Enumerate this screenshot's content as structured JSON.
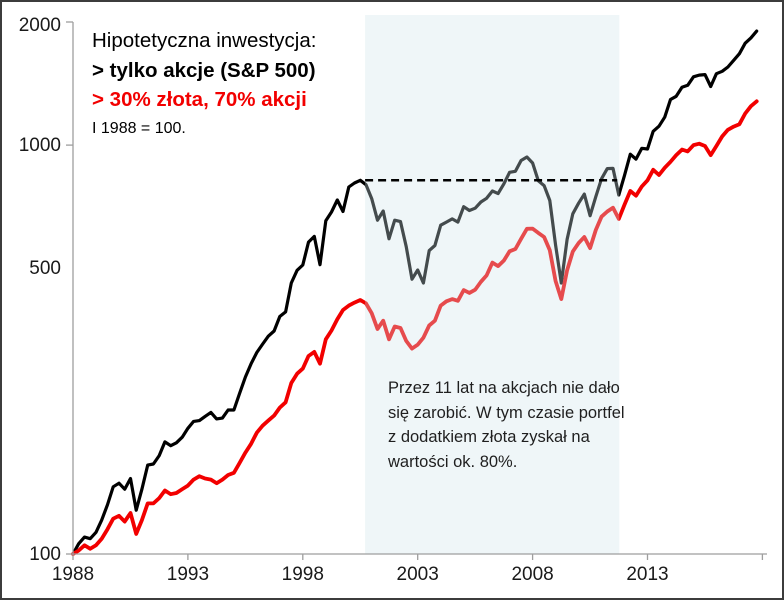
{
  "frame": {
    "border_color": "#3c3c3c",
    "background": "#ffffff"
  },
  "legend": {
    "title": "Hipotetyczna inwestycja:",
    "item_stocks": "> tylko akcje (S&P 500)",
    "item_mix": "> 30% złota, 70% akcji",
    "note": "I 1988 = 100.",
    "item_stocks_color": "#000000",
    "item_mix_color": "#f20000"
  },
  "annotation": {
    "text": "Przez 11 lat na akcjach nie dało się zarobić. W tym czasie portfel z dodatkiem złota zyskał na wartości ok. 80%."
  },
  "chart_data": {
    "type": "line",
    "title": "Hipotetyczna inwestycja:",
    "xlabel": "",
    "ylabel": "",
    "log_scale_y": true,
    "ylim": [
      100,
      2000
    ],
    "xlim": [
      1988,
      2018.2
    ],
    "grid": false,
    "axis_color": "#9e9e9e",
    "tick_label_color": "#1a1a1a",
    "tick_label_font_px": 19,
    "y_ticks": [
      {
        "label": "2000",
        "value": 2000,
        "has_tick": true
      },
      {
        "label": "1000",
        "value": 1000,
        "has_tick": true
      },
      {
        "label": "500",
        "value": 500,
        "has_tick": false
      },
      {
        "label": "100",
        "value": 100,
        "has_tick": true
      }
    ],
    "x_ticks": [
      {
        "label": "1988",
        "value": 1988
      },
      {
        "label": "1993",
        "value": 1993
      },
      {
        "label": "1998",
        "value": 1998
      },
      {
        "label": "2003",
        "value": 2003
      },
      {
        "label": "2008",
        "value": 2008
      },
      {
        "label": "2013",
        "value": 2013
      },
      {
        "label": "",
        "value": 2018
      }
    ],
    "shaded_region": {
      "x_start": 2000.71,
      "x_end": 2011.77,
      "color": "#cfe3ea",
      "opacity": 0.33,
      "meaning": "Okres 11 lat bez zysku na akcjach (2000-2011)"
    },
    "dashed_line": {
      "level": 820,
      "x_start": 2000.71,
      "x_end": 2011.68,
      "color": "#000000"
    },
    "series": [
      {
        "name": "tylko akcje (S&P 500)",
        "color": "#000000",
        "width": 3.2,
        "points": [
          [
            1988.0,
            100
          ],
          [
            1988.25,
            106
          ],
          [
            1988.5,
            110
          ],
          [
            1988.75,
            109
          ],
          [
            1989.0,
            113
          ],
          [
            1989.25,
            121
          ],
          [
            1989.5,
            132
          ],
          [
            1989.75,
            146
          ],
          [
            1990.0,
            149
          ],
          [
            1990.25,
            144
          ],
          [
            1990.5,
            153
          ],
          [
            1990.75,
            128
          ],
          [
            1991.0,
            144
          ],
          [
            1991.25,
            165
          ],
          [
            1991.5,
            166
          ],
          [
            1991.75,
            174
          ],
          [
            1992.0,
            188
          ],
          [
            1992.25,
            184
          ],
          [
            1992.5,
            187
          ],
          [
            1992.75,
            193
          ],
          [
            1993.0,
            203
          ],
          [
            1993.25,
            211
          ],
          [
            1993.5,
            212
          ],
          [
            1993.75,
            217
          ],
          [
            1994.0,
            222
          ],
          [
            1994.25,
            214
          ],
          [
            1994.5,
            215
          ],
          [
            1994.75,
            225
          ],
          [
            1995.0,
            225
          ],
          [
            1995.25,
            247
          ],
          [
            1995.5,
            271
          ],
          [
            1995.75,
            292
          ],
          [
            1996.0,
            311
          ],
          [
            1996.25,
            326
          ],
          [
            1996.5,
            341
          ],
          [
            1996.75,
            351
          ],
          [
            1997.0,
            381
          ],
          [
            1997.25,
            391
          ],
          [
            1997.5,
            460
          ],
          [
            1997.75,
            494
          ],
          [
            1998.0,
            509
          ],
          [
            1998.25,
            579
          ],
          [
            1998.5,
            598
          ],
          [
            1998.75,
            510
          ],
          [
            1999.0,
            653
          ],
          [
            1999.25,
            686
          ],
          [
            1999.5,
            734
          ],
          [
            1999.75,
            688
          ],
          [
            2000.0,
            790
          ],
          [
            2000.25,
            808
          ],
          [
            2000.5,
            820
          ],
          [
            2000.75,
            800
          ],
          [
            2001.0,
            740
          ],
          [
            2001.25,
            655
          ],
          [
            2001.5,
            690
          ],
          [
            2001.75,
            590
          ],
          [
            2002.0,
            655
          ],
          [
            2002.25,
            650
          ],
          [
            2002.5,
            565
          ],
          [
            2002.75,
            470
          ],
          [
            2003.0,
            495
          ],
          [
            2003.25,
            460
          ],
          [
            2003.5,
            552
          ],
          [
            2003.75,
            568
          ],
          [
            2004.0,
            637
          ],
          [
            2004.25,
            648
          ],
          [
            2004.5,
            660
          ],
          [
            2004.75,
            648
          ],
          [
            2005.0,
            707
          ],
          [
            2005.25,
            692
          ],
          [
            2005.5,
            701
          ],
          [
            2005.75,
            726
          ],
          [
            2006.0,
            741
          ],
          [
            2006.25,
            772
          ],
          [
            2006.5,
            761
          ],
          [
            2006.75,
            804
          ],
          [
            2007.0,
            858
          ],
          [
            2007.25,
            863
          ],
          [
            2007.5,
            917
          ],
          [
            2007.75,
            935
          ],
          [
            2008.0,
            904
          ],
          [
            2008.25,
            818
          ],
          [
            2008.5,
            796
          ],
          [
            2008.75,
            732
          ],
          [
            2009.0,
            569
          ],
          [
            2009.25,
            460
          ],
          [
            2009.5,
            588
          ],
          [
            2009.75,
            679
          ],
          [
            2010.0,
            721
          ],
          [
            2010.25,
            759
          ],
          [
            2010.5,
            672
          ],
          [
            2010.75,
            748
          ],
          [
            2011.0,
            827
          ],
          [
            2011.25,
            876
          ],
          [
            2011.5,
            877
          ],
          [
            2011.75,
            755
          ],
          [
            2012.0,
            843
          ],
          [
            2012.25,
            950
          ],
          [
            2012.5,
            924
          ],
          [
            2012.75,
            982
          ],
          [
            2013.0,
            978
          ],
          [
            2013.25,
            1081
          ],
          [
            2013.5,
            1112
          ],
          [
            2013.75,
            1170
          ],
          [
            2014.0,
            1293
          ],
          [
            2014.25,
            1316
          ],
          [
            2014.5,
            1385
          ],
          [
            2014.75,
            1400
          ],
          [
            2015.0,
            1469
          ],
          [
            2015.25,
            1483
          ],
          [
            2015.5,
            1487
          ],
          [
            2015.75,
            1391
          ],
          [
            2016.0,
            1495
          ],
          [
            2016.25,
            1515
          ],
          [
            2016.5,
            1552
          ],
          [
            2016.75,
            1612
          ],
          [
            2017.0,
            1673
          ],
          [
            2017.25,
            1775
          ],
          [
            2017.5,
            1829
          ],
          [
            2017.75,
            1900
          ]
        ]
      },
      {
        "name": "30% złota, 70% akcji",
        "color": "#f20000",
        "width": 3.8,
        "points": [
          [
            1988.0,
            100
          ],
          [
            1988.25,
            102
          ],
          [
            1988.5,
            105
          ],
          [
            1988.75,
            103
          ],
          [
            1989.0,
            105
          ],
          [
            1989.25,
            109
          ],
          [
            1989.5,
            115
          ],
          [
            1989.75,
            122
          ],
          [
            1990.0,
            124
          ],
          [
            1990.25,
            120
          ],
          [
            1990.5,
            126
          ],
          [
            1990.75,
            112
          ],
          [
            1991.0,
            121
          ],
          [
            1991.25,
            133
          ],
          [
            1991.5,
            133
          ],
          [
            1991.75,
            137
          ],
          [
            1992.0,
            143
          ],
          [
            1992.25,
            140
          ],
          [
            1992.5,
            141
          ],
          [
            1992.75,
            144
          ],
          [
            1993.0,
            147
          ],
          [
            1993.25,
            152
          ],
          [
            1993.5,
            155
          ],
          [
            1993.75,
            153
          ],
          [
            1994.0,
            152
          ],
          [
            1994.25,
            149
          ],
          [
            1994.5,
            152
          ],
          [
            1994.75,
            156
          ],
          [
            1995.0,
            158
          ],
          [
            1995.25,
            167
          ],
          [
            1995.5,
            177
          ],
          [
            1995.75,
            186
          ],
          [
            1996.0,
            198
          ],
          [
            1996.25,
            206
          ],
          [
            1996.5,
            212
          ],
          [
            1996.75,
            218
          ],
          [
            1997.0,
            228
          ],
          [
            1997.25,
            235
          ],
          [
            1997.5,
            262
          ],
          [
            1997.75,
            276
          ],
          [
            1998.0,
            284
          ],
          [
            1998.25,
            305
          ],
          [
            1998.5,
            312
          ],
          [
            1998.75,
            292
          ],
          [
            1999.0,
            335
          ],
          [
            1999.25,
            352
          ],
          [
            1999.5,
            375
          ],
          [
            1999.75,
            395
          ],
          [
            2000.0,
            405
          ],
          [
            2000.25,
            412
          ],
          [
            2000.5,
            418
          ],
          [
            2000.75,
            410
          ],
          [
            2001.0,
            388
          ],
          [
            2001.25,
            355
          ],
          [
            2001.5,
            372
          ],
          [
            2001.75,
            335
          ],
          [
            2002.0,
            360
          ],
          [
            2002.25,
            357
          ],
          [
            2002.5,
            332
          ],
          [
            2002.75,
            318
          ],
          [
            2003.0,
            325
          ],
          [
            2003.25,
            338
          ],
          [
            2003.5,
            362
          ],
          [
            2003.75,
            372
          ],
          [
            2004.0,
            405
          ],
          [
            2004.25,
            415
          ],
          [
            2004.5,
            420
          ],
          [
            2004.75,
            416
          ],
          [
            2005.0,
            442
          ],
          [
            2005.25,
            435
          ],
          [
            2005.5,
            443
          ],
          [
            2005.75,
            463
          ],
          [
            2006.0,
            480
          ],
          [
            2006.25,
            516
          ],
          [
            2006.5,
            506
          ],
          [
            2006.75,
            522
          ],
          [
            2007.0,
            550
          ],
          [
            2007.25,
            557
          ],
          [
            2007.5,
            590
          ],
          [
            2007.75,
            624
          ],
          [
            2008.0,
            625
          ],
          [
            2008.25,
            610
          ],
          [
            2008.5,
            596
          ],
          [
            2008.75,
            553
          ],
          [
            2009.0,
            465
          ],
          [
            2009.25,
            420
          ],
          [
            2009.5,
            494
          ],
          [
            2009.75,
            549
          ],
          [
            2010.0,
            576
          ],
          [
            2010.25,
            596
          ],
          [
            2010.5,
            560
          ],
          [
            2010.75,
            620
          ],
          [
            2011.0,
            668
          ],
          [
            2011.25,
            688
          ],
          [
            2011.5,
            703
          ],
          [
            2011.75,
            660
          ],
          [
            2012.0,
            715
          ],
          [
            2012.25,
            772
          ],
          [
            2012.5,
            752
          ],
          [
            2012.75,
            792
          ],
          [
            2013.0,
            820
          ],
          [
            2013.25,
            870
          ],
          [
            2013.5,
            845
          ],
          [
            2013.75,
            880
          ],
          [
            2014.0,
            910
          ],
          [
            2014.25,
            945
          ],
          [
            2014.5,
            975
          ],
          [
            2014.75,
            965
          ],
          [
            2015.0,
            1000
          ],
          [
            2015.25,
            1008
          ],
          [
            2015.5,
            995
          ],
          [
            2015.75,
            945
          ],
          [
            2016.0,
            995
          ],
          [
            2016.25,
            1050
          ],
          [
            2016.5,
            1090
          ],
          [
            2016.75,
            1110
          ],
          [
            2017.0,
            1125
          ],
          [
            2017.25,
            1195
          ],
          [
            2017.5,
            1245
          ],
          [
            2017.75,
            1280
          ]
        ]
      }
    ]
  }
}
